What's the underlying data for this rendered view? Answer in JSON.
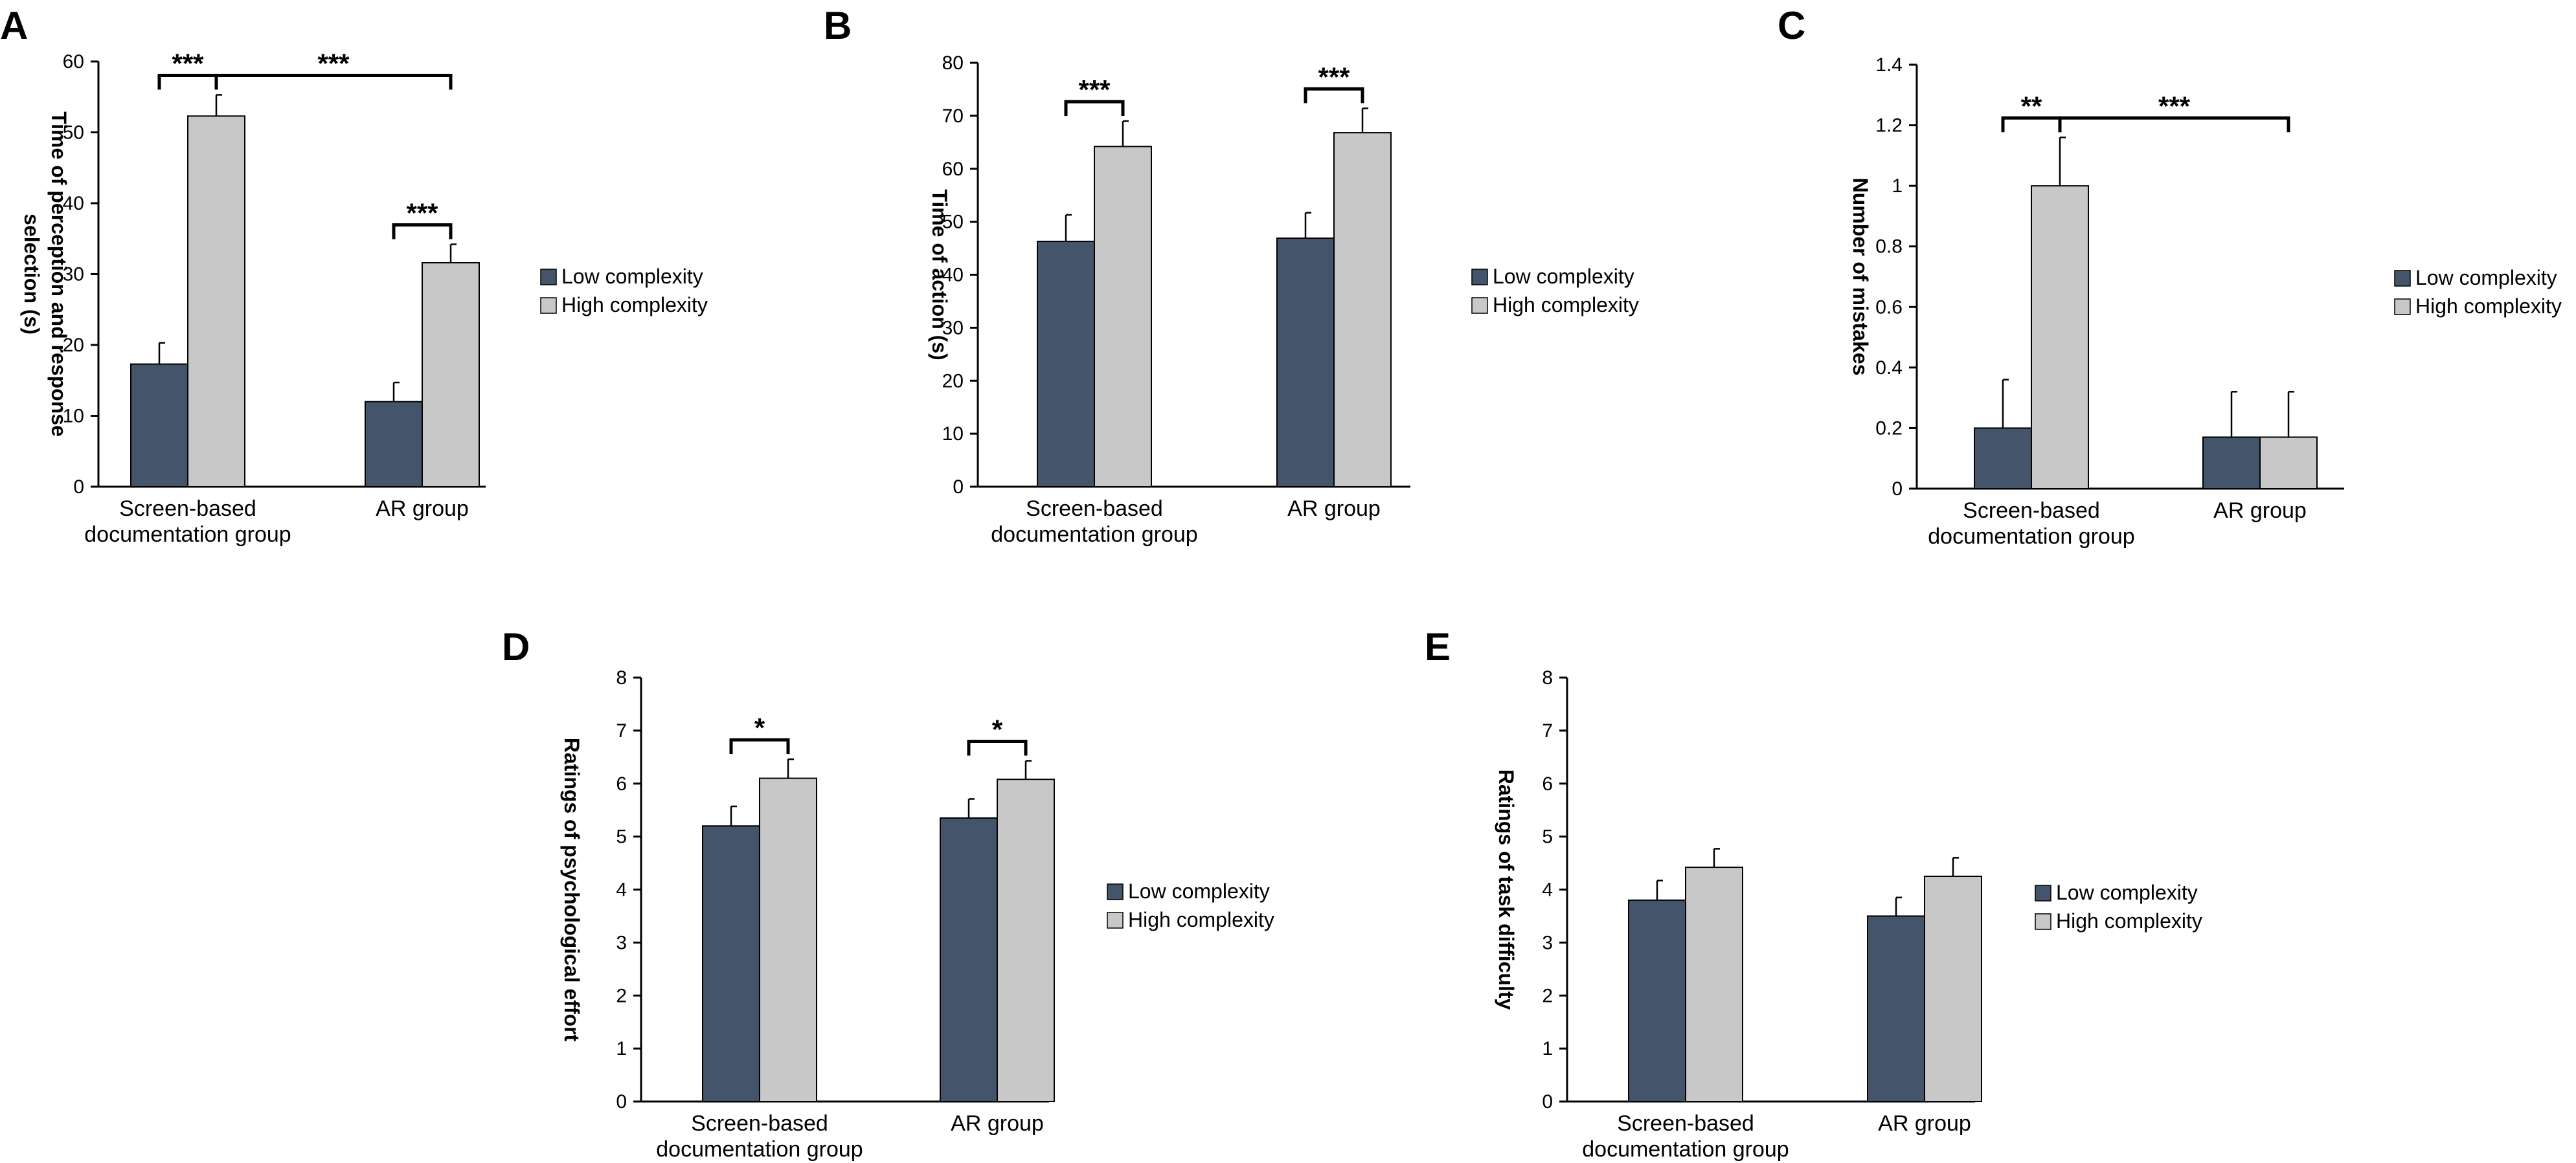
{
  "colors": {
    "low": "#44546a",
    "high": "#c8c8c8",
    "axis": "#000000"
  },
  "legend": {
    "low_label": "Low complexity",
    "high_label": "High complexity"
  },
  "chart_data": [
    {
      "panel": "A",
      "type": "bar",
      "categories": [
        "Screen-based\ndocumentation group",
        "AR group"
      ],
      "ylabel": "Time of perception and response\nselection (s)",
      "ylim": [
        0,
        60
      ],
      "yticks": [
        0,
        10,
        20,
        30,
        40,
        50,
        60
      ],
      "tick_labels": [
        "0",
        "10",
        "20",
        "30",
        "40",
        "50",
        "60"
      ],
      "series": [
        {
          "name": "Low complexity",
          "values": [
            17.3,
            12.0
          ],
          "errors": [
            3.0,
            2.7
          ]
        },
        {
          "name": "High complexity",
          "values": [
            52.3,
            31.6
          ],
          "errors": [
            3.0,
            2.6
          ]
        }
      ],
      "significance": [
        {
          "from": [
            0,
            0
          ],
          "to": [
            0,
            1
          ],
          "label": "***"
        },
        {
          "from": [
            0,
            1
          ],
          "to": [
            1,
            1
          ],
          "label": "***"
        },
        {
          "from": [
            1,
            0
          ],
          "to": [
            1,
            1
          ],
          "label": "***"
        }
      ]
    },
    {
      "panel": "B",
      "type": "bar",
      "categories": [
        "Screen-based\ndocumentation group",
        "AR group"
      ],
      "ylabel": "Time of action (s)",
      "ylim": [
        0,
        80
      ],
      "yticks": [
        0,
        10,
        20,
        30,
        40,
        50,
        60,
        70,
        80
      ],
      "tick_labels": [
        "0",
        "10",
        "20",
        "30",
        "40",
        "50",
        "60",
        "70",
        "80"
      ],
      "series": [
        {
          "name": "Low complexity",
          "values": [
            46.3,
            46.9
          ],
          "errors": [
            5.0,
            4.8
          ]
        },
        {
          "name": "High complexity",
          "values": [
            64.2,
            66.8
          ],
          "errors": [
            4.8,
            4.6
          ]
        }
      ],
      "significance": [
        {
          "from": [
            0,
            0
          ],
          "to": [
            0,
            1
          ],
          "label": "***"
        },
        {
          "from": [
            1,
            0
          ],
          "to": [
            1,
            1
          ],
          "label": "***"
        }
      ]
    },
    {
      "panel": "C",
      "type": "bar",
      "categories": [
        "Screen-based\ndocumentation group",
        "AR group"
      ],
      "ylabel": "Number of mistakes",
      "ylim": [
        0,
        1.4
      ],
      "yticks": [
        0,
        0.2,
        0.4,
        0.6,
        0.8,
        1.0,
        1.2,
        1.4
      ],
      "tick_labels": [
        "0",
        "0.2",
        "0.4",
        "0.6",
        "0.8",
        "1",
        "1.2",
        "1.4"
      ],
      "series": [
        {
          "name": "Low complexity",
          "values": [
            0.2,
            0.17
          ],
          "errors": [
            0.16,
            0.15
          ]
        },
        {
          "name": "High complexity",
          "values": [
            1.0,
            0.17
          ],
          "errors": [
            0.16,
            0.15
          ]
        }
      ],
      "significance": [
        {
          "from": [
            0,
            0
          ],
          "to": [
            0,
            1
          ],
          "label": "**"
        },
        {
          "from": [
            0,
            1
          ],
          "to": [
            1,
            1
          ],
          "label": "***"
        }
      ]
    },
    {
      "panel": "D",
      "type": "bar",
      "categories": [
        "Screen-based\ndocumentation group",
        "AR group"
      ],
      "ylabel": "Ratings of psychological effort",
      "ylim": [
        0,
        8
      ],
      "yticks": [
        0,
        1,
        2,
        3,
        4,
        5,
        6,
        7,
        8
      ],
      "tick_labels": [
        "0",
        "1",
        "2",
        "3",
        "4",
        "5",
        "6",
        "7",
        "8"
      ],
      "series": [
        {
          "name": "Low complexity",
          "values": [
            5.2,
            5.35
          ],
          "errors": [
            0.37,
            0.36
          ]
        },
        {
          "name": "High complexity",
          "values": [
            6.1,
            6.08
          ],
          "errors": [
            0.36,
            0.35
          ]
        }
      ],
      "significance": [
        {
          "from": [
            0,
            0
          ],
          "to": [
            0,
            1
          ],
          "label": "*"
        },
        {
          "from": [
            1,
            0
          ],
          "to": [
            1,
            1
          ],
          "label": "*"
        }
      ]
    },
    {
      "panel": "E",
      "type": "bar",
      "categories": [
        "Screen-based\ndocumentation group",
        "AR group"
      ],
      "ylabel": "Ratings of task difficulty",
      "ylim": [
        0,
        8
      ],
      "yticks": [
        0,
        1,
        2,
        3,
        4,
        5,
        6,
        7,
        8
      ],
      "tick_labels": [
        "0",
        "1",
        "2",
        "3",
        "4",
        "5",
        "6",
        "7",
        "8"
      ],
      "series": [
        {
          "name": "Low complexity",
          "values": [
            3.8,
            3.5
          ],
          "errors": [
            0.37,
            0.35
          ]
        },
        {
          "name": "High complexity",
          "values": [
            4.42,
            4.25
          ],
          "errors": [
            0.35,
            0.35
          ]
        }
      ],
      "significance": []
    }
  ]
}
